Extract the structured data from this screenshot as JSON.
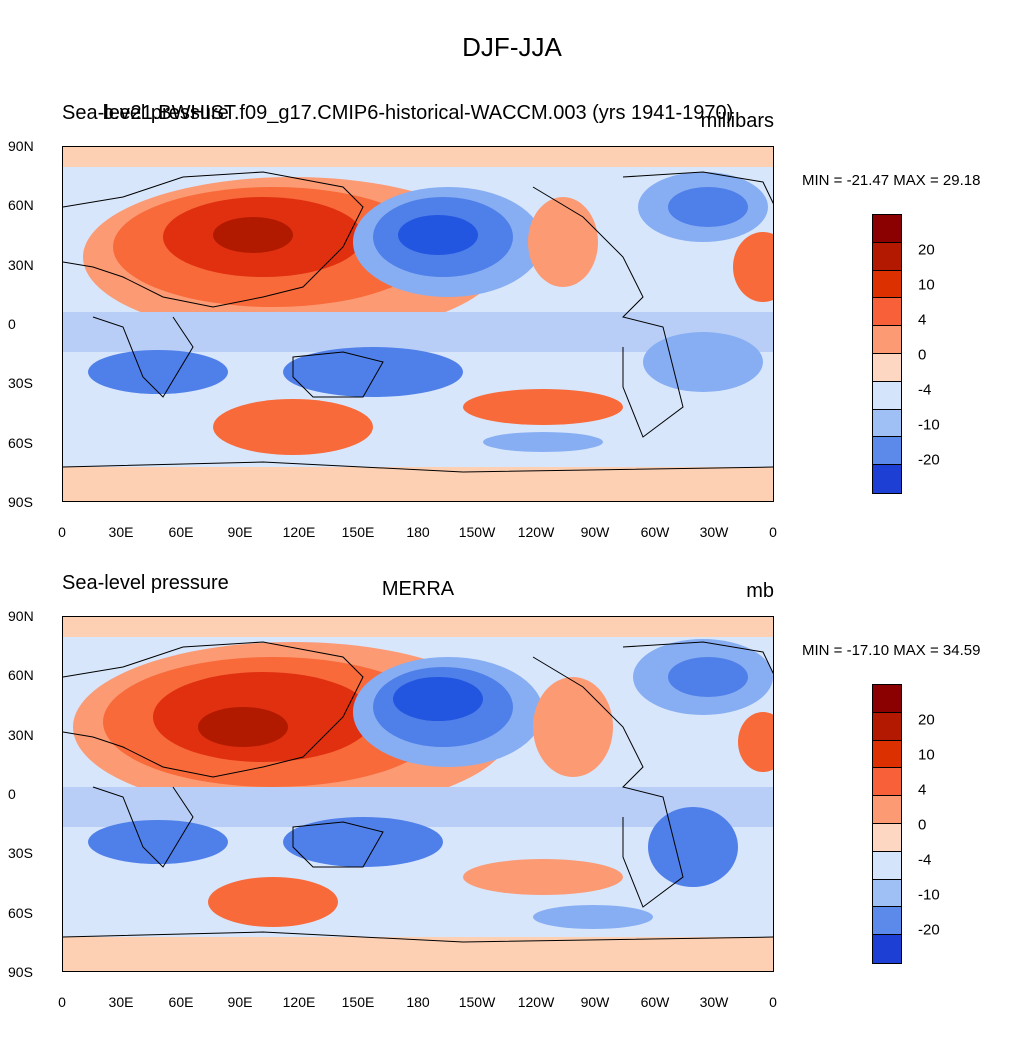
{
  "title": "DJF-JJA",
  "colors": {
    "levels": [
      "#8b0000",
      "#b21a00",
      "#e03010",
      "#f86a3a",
      "#fc9a74",
      "#fdd0b4",
      "#fde9da",
      "#d7e6fb",
      "#b8cef7",
      "#87aef3",
      "#4f7fe8",
      "#2255e0",
      "#0d2ecb",
      "#0818a6",
      "#000080"
    ],
    "palette_ten": [
      "#8b0000",
      "#b31900",
      "#dc3000",
      "#f8603a",
      "#fc9a74",
      "#fdd7c2",
      "#d4e5fb",
      "#9ec0f5",
      "#5c8aea",
      "#1d3fd4"
    ],
    "land_line": "#000000"
  },
  "panels": [
    {
      "left_label": "Sea-level pressure",
      "center_label": "b.e21.BWHIST.f09_g17.CMIP6-historical-WACCM.003 (yrs 1941-1970)",
      "right_label": "millibars",
      "min_max": "MIN = -21.47 MAX =  29.18",
      "colorbar_labels": [
        "20",
        "10",
        "4",
        "0",
        "-4",
        "-10",
        "-20"
      ]
    },
    {
      "left_label": "Sea-level pressure",
      "center_label": "MERRA",
      "right_label": "mb",
      "min_max": "MIN = -17.10 MAX =  34.59",
      "colorbar_labels": [
        "20",
        "10",
        "4",
        "0",
        "-4",
        "-10",
        "-20"
      ]
    }
  ],
  "lat_labels": [
    "90N",
    "60N",
    "30N",
    "0",
    "30S",
    "60S",
    "90S"
  ],
  "lon_labels": [
    "0",
    "30E",
    "60E",
    "90E",
    "120E",
    "150E",
    "180",
    "150W",
    "120W",
    "90W",
    "60W",
    "30W",
    "0"
  ]
}
